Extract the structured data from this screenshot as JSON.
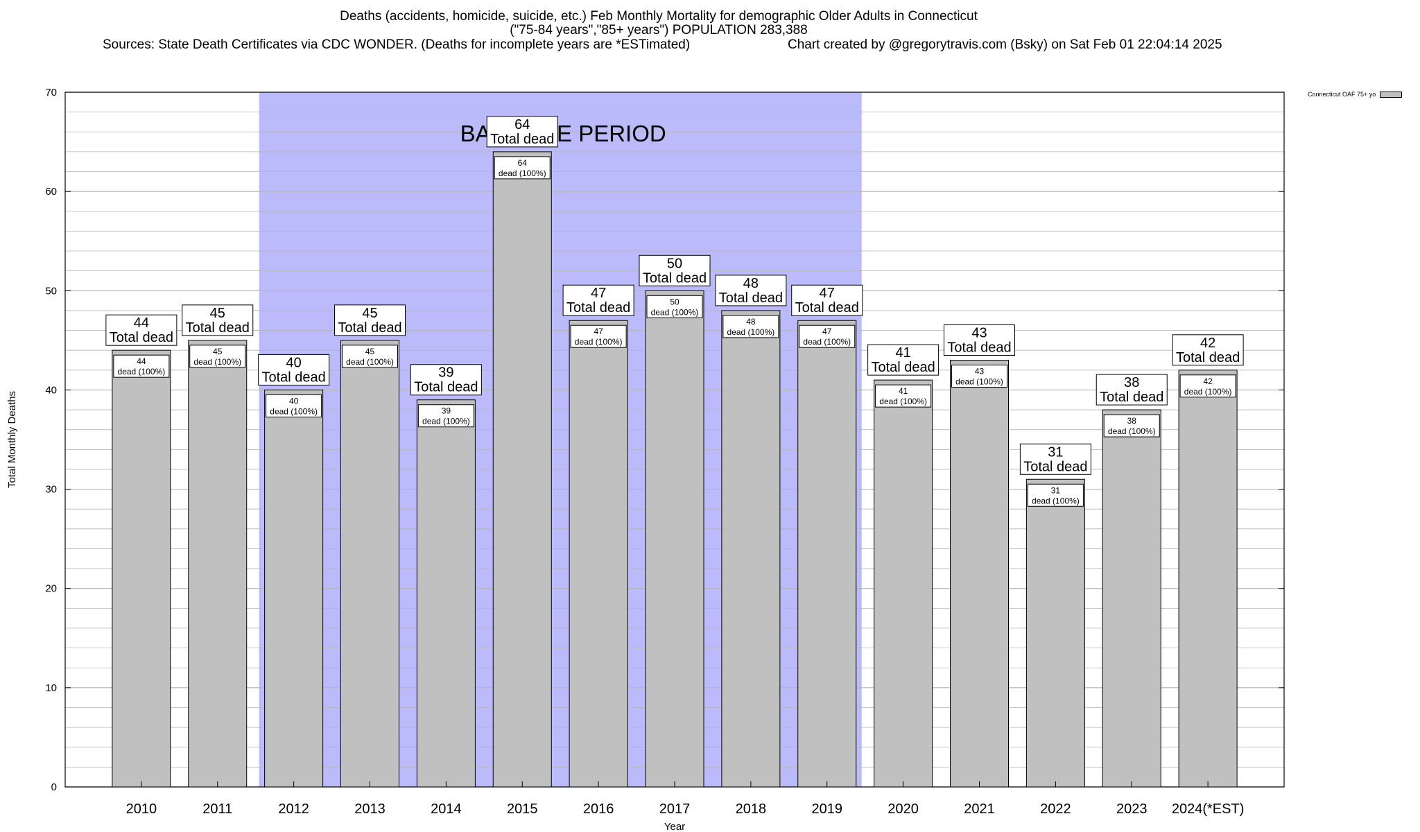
{
  "colors": {
    "bar_fill": "#c0c0c0",
    "baseline_fill": "#bbbbfb",
    "grid": "#b4b4b4",
    "axis": "#000000"
  },
  "chart_data": {
    "type": "bar",
    "title_lines": [
      "Deaths (accidents, homicide, suicide, etc.) Feb Monthly Mortality for demographic Older Adults in Connecticut",
      "(\"75-84 years\",\"85+ years\") POPULATION 283,388"
    ],
    "source_note": "Sources: State Death Certificates via CDC WONDER. (Deaths for incomplete years are *ESTimated)",
    "credit": "Chart created by @gregorytravis.com (Bsky) on Sat Feb 01 22:04:14 2025",
    "xlabel": "Year",
    "ylabel": "Total Monthly Deaths",
    "ylim": [
      0,
      70
    ],
    "yticks": [
      0,
      10,
      20,
      30,
      40,
      50,
      60,
      70
    ],
    "grid": true,
    "categories": [
      "2010",
      "2011",
      "2012",
      "2013",
      "2014",
      "2015",
      "2016",
      "2017",
      "2018",
      "2019",
      "2020",
      "2021",
      "2022",
      "2023",
      "2024(*EST)"
    ],
    "series": [
      {
        "name": "Connecticut OAF 75+ yo",
        "values": [
          44,
          45,
          40,
          45,
          39,
          64,
          47,
          50,
          48,
          47,
          41,
          43,
          31,
          38,
          42
        ]
      }
    ],
    "top_label_suffix": "Total dead",
    "inner_label_suffix": "dead (100%)",
    "baseline_period": {
      "label": "BASELINE PERIOD",
      "start": "2012",
      "end": "2019"
    },
    "legend_position": "top-right"
  }
}
